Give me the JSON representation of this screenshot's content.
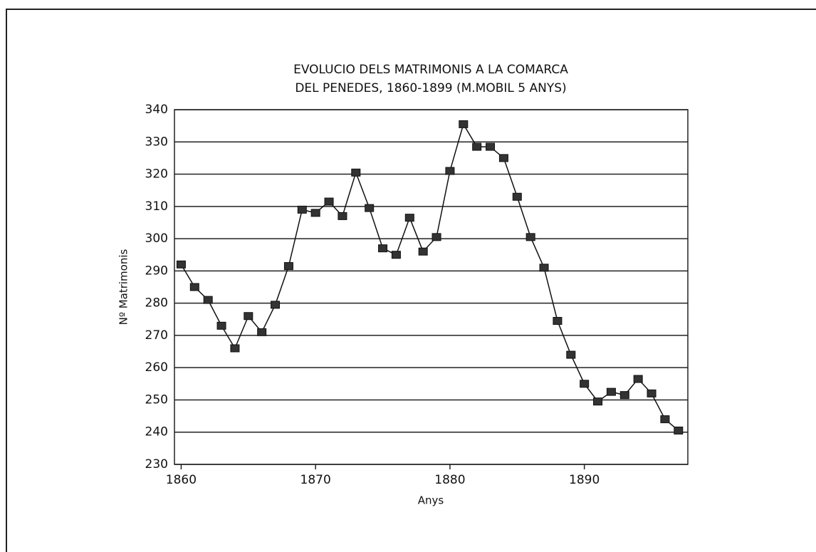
{
  "chart_data": {
    "type": "line",
    "title": [
      "EVOLUCIO DELS MATRIMONIS A LA COMARCA",
      "DEL PENEDES, 1860-1899 (M.MOBIL 5 ANYS)"
    ],
    "x_label": "Anys",
    "y_label": "Nº Matrimonis",
    "x": [
      1860,
      1861,
      1862,
      1863,
      1864,
      1865,
      1866,
      1867,
      1868,
      1869,
      1870,
      1871,
      1872,
      1873,
      1874,
      1875,
      1876,
      1877,
      1878,
      1879,
      1880,
      1881,
      1882,
      1883,
      1884,
      1885,
      1886,
      1887,
      1888,
      1889,
      1890,
      1891,
      1892,
      1893,
      1894,
      1895,
      1896,
      1897
    ],
    "series": [
      {
        "name": "Matrimonis",
        "color": "#333333",
        "values": [
          292,
          285,
          281,
          273,
          266,
          276,
          271,
          279.5,
          291.5,
          309,
          308,
          311.5,
          307,
          320.5,
          309.5,
          297,
          295,
          306.5,
          296,
          300.5,
          321,
          335.5,
          328.5,
          328.5,
          325,
          313,
          300.5,
          291,
          274.5,
          264,
          255,
          249.5,
          252.5,
          251.5,
          256.5,
          252,
          244,
          240.5
        ]
      }
    ],
    "xlim": [
      1859.5,
      1897.7
    ],
    "xticks": [
      1860,
      1870,
      1880,
      1890
    ],
    "ylim": [
      230,
      340
    ],
    "yticks": [
      230,
      240,
      250,
      260,
      270,
      280,
      290,
      300,
      310,
      320,
      330,
      340
    ],
    "grid": true
  }
}
